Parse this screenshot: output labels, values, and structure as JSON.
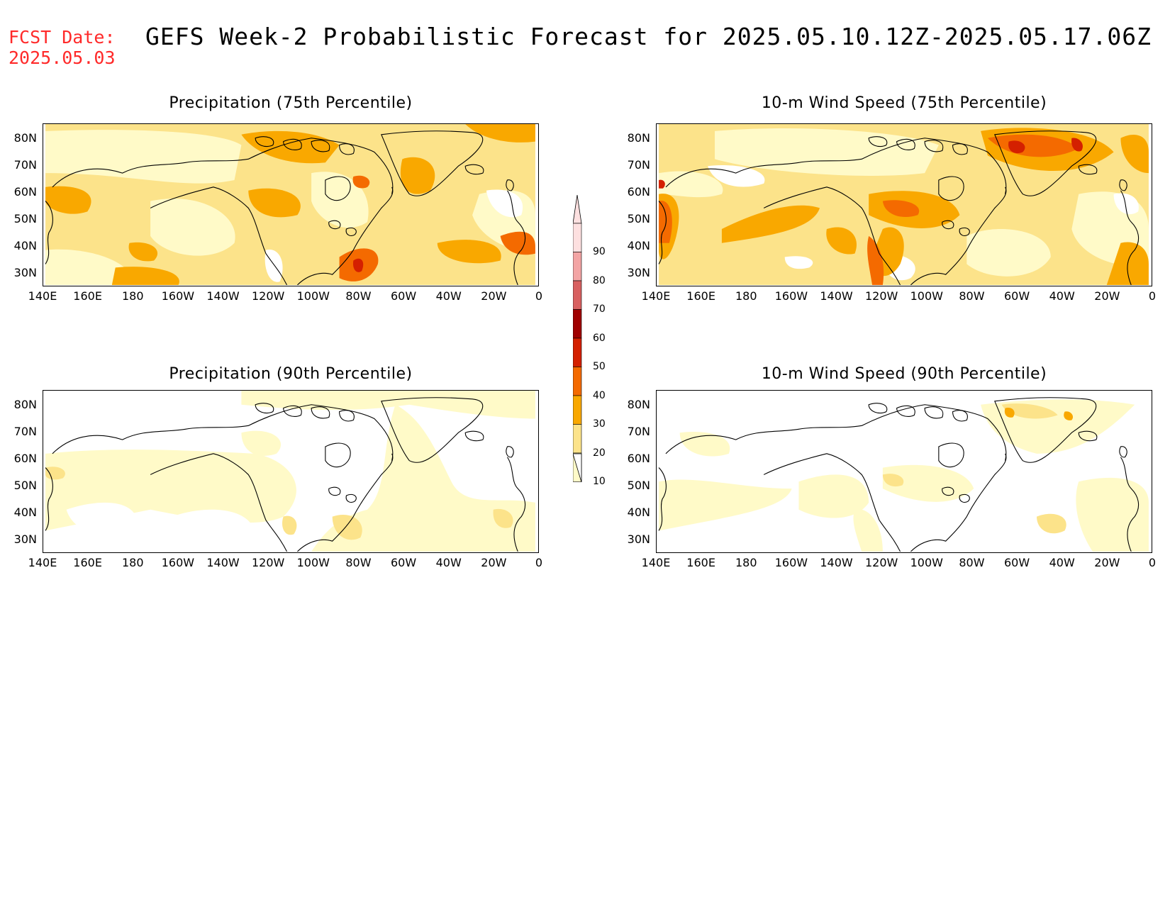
{
  "header": {
    "fcst_label": "FCST Date:",
    "fcst_date": "2025.05.03",
    "title": "GEFS Week-2 Probabilistic Forecast for 2025.05.10.12Z-2025.05.17.06Z"
  },
  "panels": [
    {
      "id": "p1",
      "title": "Precipitation (75th Percentile)",
      "variable": "precipitation",
      "percentile": "75th"
    },
    {
      "id": "p2",
      "title": "10-m Wind Speed (75th Percentile)",
      "variable": "wind",
      "percentile": "75th"
    },
    {
      "id": "p3",
      "title": "Precipitation (90th Percentile)",
      "variable": "precipitation",
      "percentile": "90th"
    },
    {
      "id": "p4",
      "title": "10-m Wind Speed (90th Percentile)",
      "variable": "wind",
      "percentile": "90th"
    }
  ],
  "lat_labels": [
    "80N",
    "70N",
    "60N",
    "50N",
    "40N",
    "30N"
  ],
  "lon_labels": [
    "140E",
    "160E",
    "180",
    "160W",
    "140W",
    "120W",
    "100W",
    "80W",
    "60W",
    "40W",
    "20W",
    "0"
  ],
  "colorbar": {
    "labels": [
      "90",
      "80",
      "70",
      "60",
      "50",
      "40",
      "30",
      "20",
      "10"
    ],
    "colors": [
      "#fde0e0",
      "#f3a4a4",
      "#d86060",
      "#a00000",
      "#d42000",
      "#f46a00",
      "#f9a800",
      "#fce38a",
      "#fffac8"
    ]
  }
}
